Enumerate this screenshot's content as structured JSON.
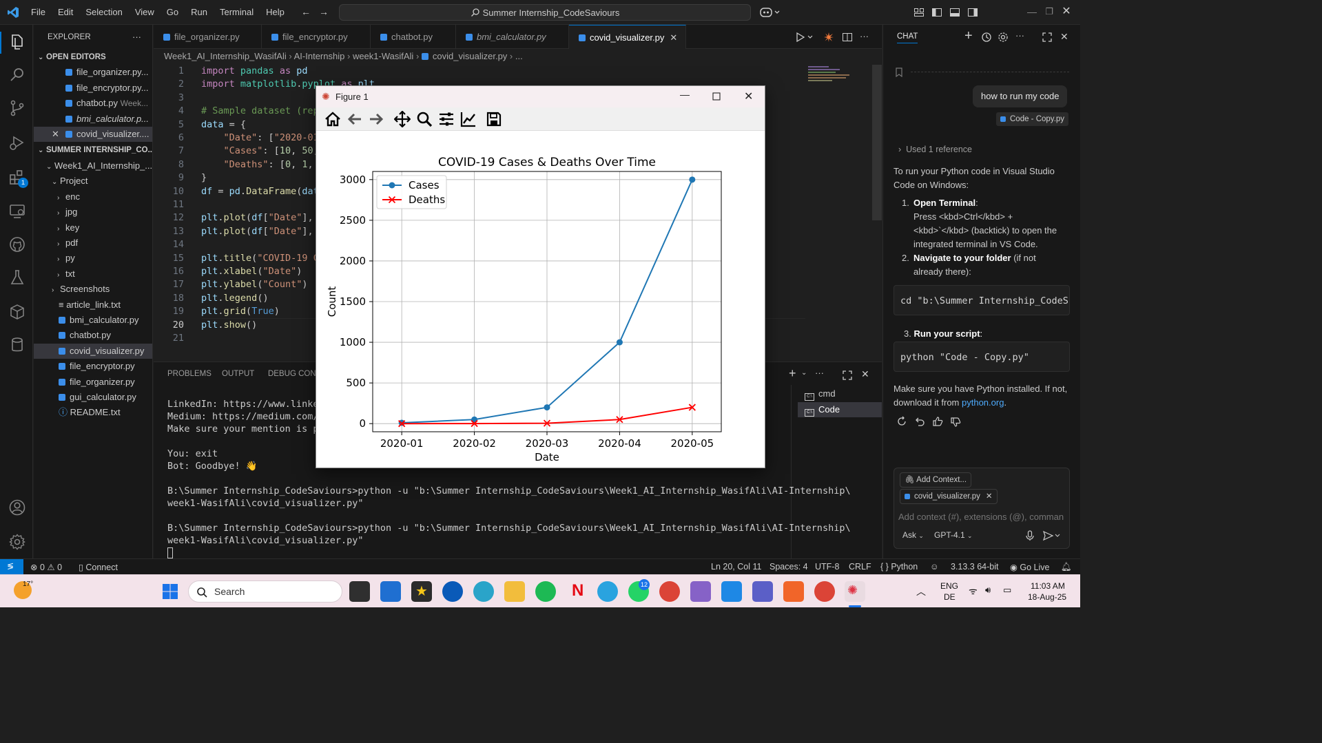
{
  "titlebar": {
    "menus": [
      "File",
      "Edit",
      "Selection",
      "View",
      "Go",
      "Run",
      "Terminal",
      "Help"
    ],
    "search_text": "Summer Internship_CodeSaviours"
  },
  "explorer": {
    "title": "EXPLORER",
    "open_editors_label": "OPEN EDITORS",
    "open_editors": [
      {
        "name": "file_organizer.py...",
        "italic": false
      },
      {
        "name": "file_encryptor.py...",
        "italic": false
      },
      {
        "name": "chatbot.py",
        "suffix": "Week...",
        "italic": false
      },
      {
        "name": "bmi_calculator.p...",
        "italic": true
      },
      {
        "name": "covid_visualizer....",
        "italic": false
      }
    ],
    "workspace_label": "SUMMER INTERNSHIP_CO...",
    "tree": [
      {
        "label": "Week1_AI_Internship_...",
        "type": "folder-open",
        "indent": 1
      },
      {
        "label": "Project",
        "type": "folder-open",
        "indent": 2
      },
      {
        "label": "enc",
        "type": "folder",
        "indent": 3
      },
      {
        "label": "jpg",
        "type": "folder",
        "indent": 3
      },
      {
        "label": "key",
        "type": "folder",
        "indent": 3
      },
      {
        "label": "pdf",
        "type": "folder",
        "indent": 3
      },
      {
        "label": "py",
        "type": "folder",
        "indent": 3
      },
      {
        "label": "txt",
        "type": "folder",
        "indent": 3
      },
      {
        "label": "Screenshots",
        "type": "folder",
        "indent": 2
      },
      {
        "label": "article_link.txt",
        "type": "txt",
        "indent": 2
      },
      {
        "label": "bmi_calculator.py",
        "type": "py",
        "indent": 2
      },
      {
        "label": "chatbot.py",
        "type": "py",
        "indent": 2
      },
      {
        "label": "covid_visualizer.py",
        "type": "py",
        "indent": 2,
        "selected": true
      },
      {
        "label": "file_encryptor.py",
        "type": "py",
        "indent": 2
      },
      {
        "label": "file_organizer.py",
        "type": "py",
        "indent": 2
      },
      {
        "label": "gui_calculator.py",
        "type": "py",
        "indent": 2
      },
      {
        "label": "README.txt",
        "type": "info",
        "indent": 2
      }
    ],
    "extensions_badge": "1"
  },
  "tabs": [
    {
      "label": "file_organizer.py",
      "italic": false
    },
    {
      "label": "file_encryptor.py",
      "italic": false
    },
    {
      "label": "chatbot.py",
      "italic": false
    },
    {
      "label": "bmi_calculator.py",
      "italic": true
    },
    {
      "label": "covid_visualizer.py",
      "italic": false,
      "active": true
    }
  ],
  "breadcrumb": [
    "Week1_AI_Internship_WasifAli",
    "AI-Internship",
    "week1-WasifAli",
    "covid_visualizer.py",
    "..."
  ],
  "code_lines": [
    "import pandas as pd",
    "import matplotlib.pyplot as plt",
    "",
    "# Sample dataset (rep",
    "data = {",
    "    \"Date\": [\"2020-01",
    "    \"Cases\": [10, 50,",
    "    \"Deaths\": [0, 1,",
    "}",
    "df = pd.DataFrame(dat",
    "",
    "plt.plot(df[\"Date\"],",
    "plt.plot(df[\"Date\"],",
    "",
    "plt.title(\"COVID-19 C",
    "plt.xlabel(\"Date\")",
    "plt.ylabel(\"Count\")",
    "plt.legend()",
    "plt.grid(True)",
    "plt.show()",
    ""
  ],
  "panel": {
    "tabs": [
      "PROBLEMS",
      "OUTPUT",
      "DEBUG CONS"
    ],
    "terminal_lines": [
      "LinkedIn: https://www.linkedi",
      "Medium: https://medium.com/@c",
      "Make sure your mention is pro",
      "",
      "You: exit",
      "Bot: Goodbye! 👋",
      "",
      "B:\\Summer Internship_CodeSaviours>python -u \"b:\\Summer Internship_CodeSaviours\\Week1_AI_Internship_WasifAli\\AI-Internship\\",
      "week1-WasifAli\\covid_visualizer.py\"",
      "",
      "B:\\Summer Internship_CodeSaviours>python -u \"b:\\Summer Internship_CodeSaviours\\Week1_AI_Internship_WasifAli\\AI-Internship\\",
      "week1-WasifAli\\covid_visualizer.py\""
    ],
    "terminals": [
      "cmd",
      "Code"
    ]
  },
  "chat": {
    "title": "CHAT",
    "user_message": "how to run my code",
    "user_reference": "Code - Copy.py",
    "used_reference": "Used 1 reference",
    "intro": "To run your Python code in Visual Studio Code on Windows:",
    "step1_title": "Open Terminal",
    "step1_text_a": "Press <kbd>Ctrl</kbd> +",
    "step1_text_b": "<kbd>`</kbd> (backtick) to open the",
    "step1_text_c": "integrated terminal in VS Code.",
    "step2_title": "Navigate to your folder",
    "step2_text_a": " (if not",
    "step2_text_b": "already there):",
    "code1": "cd \"b:\\Summer Internship_CodeS",
    "step3_title": "Run your script",
    "code2": "python \"Code - Copy.py\"",
    "outro_a": "Make sure you have Python installed. If not,",
    "outro_b": "download it from ",
    "outro_link": "python.org",
    "outro_end": ".",
    "add_context": "Add Context...",
    "context_file": "covid_visualizer.py",
    "input_placeholder": "Add context (#), extensions (@), comman",
    "mode": "Ask",
    "model": "GPT-4.1"
  },
  "status": {
    "errors": "0",
    "warnings": "0",
    "connect": "Connect",
    "position": "Ln 20, Col 11",
    "spaces": "Spaces: 4",
    "encoding": "UTF-8",
    "eol": "CRLF",
    "language": "Python",
    "interpreter": "3.13.3 64-bit",
    "golive": "Go Live"
  },
  "taskbar": {
    "weather": "17°",
    "search": "Search",
    "whatsapp_badge": "12",
    "lang_a": "ENG",
    "lang_b": "DE",
    "time": "11:03 AM",
    "date": "18-Aug-25"
  },
  "figure": {
    "window_title": "Figure 1"
  },
  "chart_data": {
    "type": "line",
    "title": "COVID-19 Cases & Deaths Over Time",
    "xlabel": "Date",
    "ylabel": "Count",
    "categories": [
      "2020-01",
      "2020-02",
      "2020-03",
      "2020-04",
      "2020-05"
    ],
    "series": [
      {
        "name": "Cases",
        "values": [
          10,
          50,
          200,
          1000,
          3000
        ],
        "color": "#1f77b4",
        "marker": "o"
      },
      {
        "name": "Deaths",
        "values": [
          0,
          1,
          5,
          50,
          200
        ],
        "color": "#ff0000",
        "marker": "x"
      }
    ],
    "ylim": [
      -100,
      3100
    ],
    "yticks": [
      0,
      500,
      1000,
      1500,
      2000,
      2500,
      3000
    ],
    "grid": true,
    "legend": "top-left"
  }
}
